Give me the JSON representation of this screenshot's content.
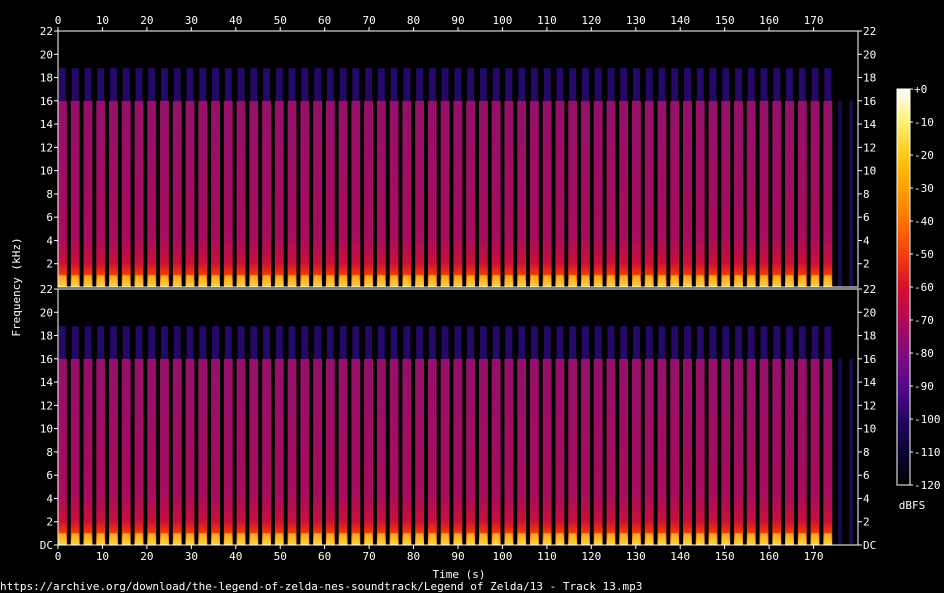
{
  "chart_data": {
    "type": "heatmap",
    "subtype": "spectrogram",
    "channels": 2,
    "xlabel": "Time (s)",
    "ylabel": "Frequency (kHz)",
    "xlim": [
      0,
      180
    ],
    "x_ticks": [
      0,
      10,
      20,
      30,
      40,
      50,
      60,
      70,
      80,
      90,
      100,
      110,
      120,
      130,
      140,
      150,
      160,
      170
    ],
    "ylim": [
      0,
      22
    ],
    "y_ticks": [
      0,
      2,
      4,
      6,
      8,
      10,
      12,
      14,
      16,
      18,
      20,
      22
    ],
    "y_tick_labels_top_channel": [
      "2",
      "4",
      "6",
      "8",
      "10",
      "12",
      "14",
      "16",
      "18",
      "20",
      "22"
    ],
    "y_tick_labels_bottom_channel": [
      "DC",
      "2",
      "4",
      "6",
      "8",
      "10",
      "12",
      "14",
      "16",
      "18",
      "20",
      "22"
    ],
    "colorbar": {
      "label": "dBFS",
      "range": [
        -120,
        0
      ],
      "ticks": [
        "+0",
        "-10",
        "-20",
        "-30",
        "-40",
        "-50",
        "-60",
        "-70",
        "-80",
        "-90",
        "-100",
        "-110",
        "-120"
      ],
      "colormap": [
        "#ffffff",
        "#fff27a",
        "#ffc20a",
        "#ff8600",
        "#f74a09",
        "#d9102a",
        "#a80862",
        "#7a0a84",
        "#50088a",
        "#220560",
        "#0b0330",
        "#000000"
      ]
    },
    "pattern": {
      "pulse_count": 61,
      "pulse_spacing_s": 2.87,
      "pulse_width_s": 2.0,
      "first_pulse_s": 0.0,
      "last_pulse_s": 172.2,
      "quiet_pulses_s": [
        175.5,
        178.0
      ],
      "main_band_top_khz": 16,
      "faint_band_top_khz": 18.8,
      "peak_level_dbfs": -5,
      "body_level_dbfs": -78
    }
  },
  "footer": {
    "source": "https://archive.org/download/the-legend-of-zelda-nes-soundtrack/Legend of Zelda/13 - Track 13.mp3"
  }
}
